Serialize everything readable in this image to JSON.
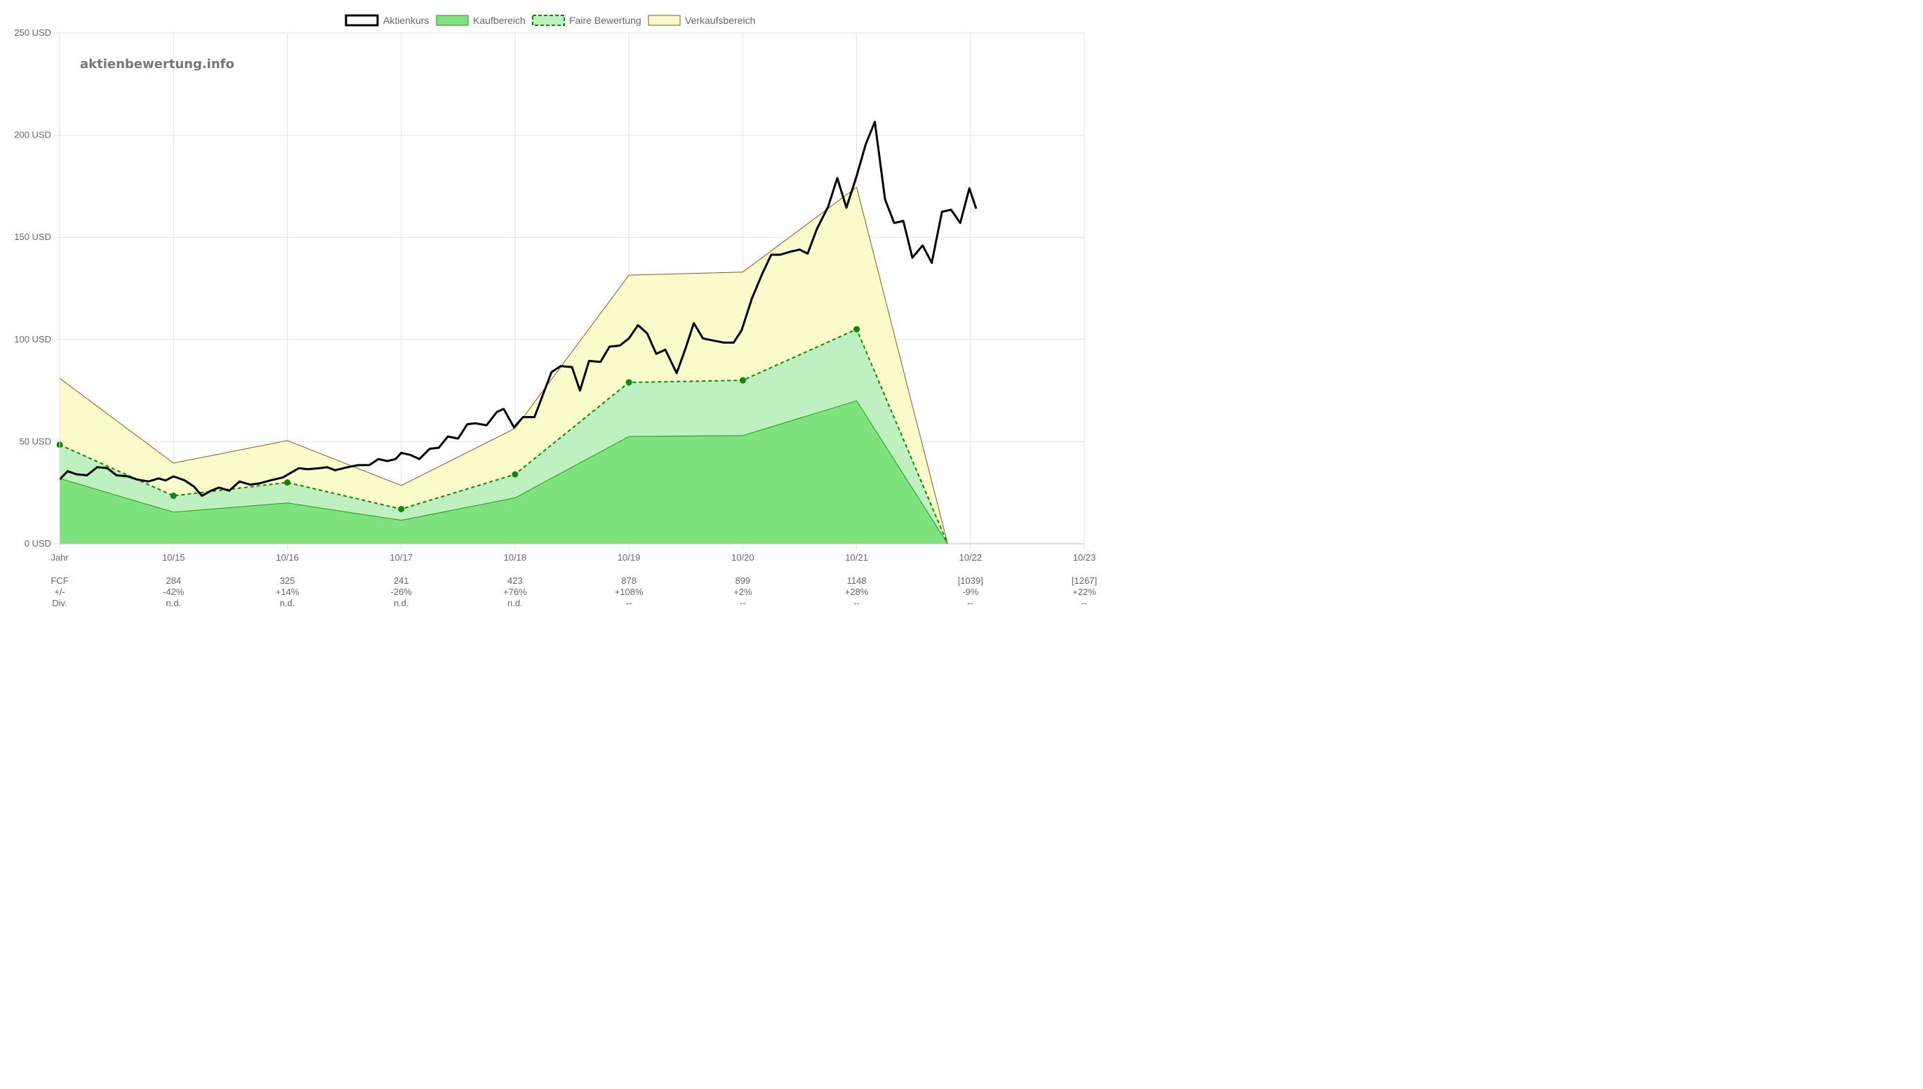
{
  "watermark": "aktienbewertung.info",
  "colors": {
    "price": "#000000",
    "buy_fill": "#7ee27e",
    "buy_line": "#1a9e1a",
    "fair_fill": "#bff0bf",
    "fair_line": "#0a8a0a",
    "sell_fill": "#fafacb",
    "sell_line": "#8b5a1a",
    "grid": "#e3e3e3",
    "text": "#666666"
  },
  "chart_data": {
    "type": "line",
    "legend": [
      "Aktienkurs",
      "Kaufbereich",
      "Faire Bewertung",
      "Verkaufsbereich"
    ],
    "legend_position": "top-center",
    "grid": true,
    "x_ticks": [
      "Jahr",
      "10/15",
      "10/16",
      "10/17",
      "10/18",
      "10/19",
      "10/20",
      "10/21",
      "10/22",
      "10/23"
    ],
    "y_ticks": [
      "0 USD",
      "50 USD",
      "100 USD",
      "150 USD",
      "200 USD",
      "250 USD"
    ],
    "ylim": [
      0,
      250
    ],
    "xlim": [
      2014,
      2023
    ],
    "table": {
      "row_labels": [
        "FCF",
        "+/-",
        "Div."
      ],
      "columns": [
        {
          "x": "10/15",
          "fcf": "284",
          "change": "-42%",
          "div": "n.d."
        },
        {
          "x": "10/16",
          "fcf": "325",
          "change": "+14%",
          "div": "n.d."
        },
        {
          "x": "10/17",
          "fcf": "241",
          "change": "-26%",
          "div": "n.d."
        },
        {
          "x": "10/18",
          "fcf": "423",
          "change": "+76%",
          "div": "n.d."
        },
        {
          "x": "10/19",
          "fcf": "878",
          "change": "+108%",
          "div": "--"
        },
        {
          "x": "10/20",
          "fcf": "899",
          "change": "+2%",
          "div": "--"
        },
        {
          "x": "10/21",
          "fcf": "1148",
          "change": "+28%",
          "div": "--"
        },
        {
          "x": "10/22",
          "fcf": "[1039]",
          "change": "-9%",
          "div": "--"
        },
        {
          "x": "10/23",
          "fcf": "[1267]",
          "change": "+22%",
          "div": "--"
        }
      ]
    },
    "series": [
      {
        "name": "Verkaufsbereich",
        "points": [
          [
            2014.0,
            81
          ],
          [
            2015.0,
            39.5
          ],
          [
            2016.0,
            50.5
          ],
          [
            2017.0,
            28.5
          ],
          [
            2018.0,
            56.5
          ],
          [
            2019.0,
            131.5
          ],
          [
            2020.0,
            133
          ],
          [
            2021.0,
            174.5
          ],
          [
            2021.8,
            0
          ],
          [
            2023.0,
            0
          ]
        ]
      },
      {
        "name": "Faire Bewertung",
        "points": [
          [
            2014.0,
            48.5
          ],
          [
            2015.0,
            23.5
          ],
          [
            2016.0,
            30
          ],
          [
            2017.0,
            17
          ],
          [
            2018.0,
            34
          ],
          [
            2019.0,
            79
          ],
          [
            2020.0,
            80
          ],
          [
            2021.0,
            105
          ],
          [
            2021.8,
            0
          ]
        ]
      },
      {
        "name": "Kaufbereich",
        "points": [
          [
            2014.0,
            32
          ],
          [
            2015.0,
            15.5
          ],
          [
            2016.0,
            20
          ],
          [
            2017.0,
            11.5
          ],
          [
            2018.0,
            22.5
          ],
          [
            2019.0,
            52.5
          ],
          [
            2020.0,
            53
          ],
          [
            2021.0,
            70
          ],
          [
            2021.8,
            0
          ],
          [
            2023.0,
            0
          ]
        ]
      },
      {
        "name": "Aktienkurs",
        "points": [
          [
            2014.0,
            31.5
          ],
          [
            2014.07,
            35.5
          ],
          [
            2014.15,
            34
          ],
          [
            2014.24,
            33.5
          ],
          [
            2014.33,
            37.5
          ],
          [
            2014.42,
            37
          ],
          [
            2014.5,
            33.5
          ],
          [
            2014.6,
            33
          ],
          [
            2014.68,
            31.5
          ],
          [
            2014.78,
            30.5
          ],
          [
            2014.87,
            32
          ],
          [
            2014.93,
            31
          ],
          [
            2015.0,
            33
          ],
          [
            2015.1,
            31
          ],
          [
            2015.18,
            28
          ],
          [
            2015.25,
            23.5
          ],
          [
            2015.33,
            26
          ],
          [
            2015.4,
            27.5
          ],
          [
            2015.49,
            26
          ],
          [
            2015.58,
            30.5
          ],
          [
            2015.67,
            29
          ],
          [
            2015.75,
            29.5
          ],
          [
            2015.85,
            31
          ],
          [
            2015.96,
            32.5
          ],
          [
            2016.1,
            37
          ],
          [
            2016.18,
            36.5
          ],
          [
            2016.28,
            37
          ],
          [
            2016.35,
            37.5
          ],
          [
            2016.42,
            36
          ],
          [
            2016.53,
            37.5
          ],
          [
            2016.62,
            38.5
          ],
          [
            2016.72,
            38.5
          ],
          [
            2016.8,
            41.5
          ],
          [
            2016.88,
            40.5
          ],
          [
            2016.95,
            41.5
          ],
          [
            2017.0,
            44.5
          ],
          [
            2017.08,
            43.5
          ],
          [
            2017.16,
            41.5
          ],
          [
            2017.25,
            46.5
          ],
          [
            2017.33,
            47
          ],
          [
            2017.41,
            52.5
          ],
          [
            2017.5,
            51.5
          ],
          [
            2017.58,
            58.5
          ],
          [
            2017.65,
            59
          ],
          [
            2017.75,
            58
          ],
          [
            2017.84,
            64.5
          ],
          [
            2017.9,
            66
          ],
          [
            2017.99,
            57
          ],
          [
            2018.07,
            62
          ],
          [
            2018.17,
            62
          ],
          [
            2018.32,
            84
          ],
          [
            2018.4,
            87
          ],
          [
            2018.5,
            86.5
          ],
          [
            2018.57,
            75
          ],
          [
            2018.65,
            89.5
          ],
          [
            2018.75,
            89
          ],
          [
            2018.83,
            96.5
          ],
          [
            2018.92,
            97
          ],
          [
            2019.0,
            100.5
          ],
          [
            2019.08,
            107
          ],
          [
            2019.16,
            103
          ],
          [
            2019.24,
            93
          ],
          [
            2019.32,
            95
          ],
          [
            2019.42,
            83.5
          ],
          [
            2019.5,
            96
          ],
          [
            2019.57,
            108
          ],
          [
            2019.65,
            100.5
          ],
          [
            2019.74,
            99.5
          ],
          [
            2019.83,
            98.5
          ],
          [
            2019.92,
            98.5
          ],
          [
            2019.99,
            104.5
          ],
          [
            2020.08,
            120
          ],
          [
            2020.17,
            132
          ],
          [
            2020.25,
            141.5
          ],
          [
            2020.33,
            141.5
          ],
          [
            2020.42,
            143
          ],
          [
            2020.5,
            144
          ],
          [
            2020.57,
            142
          ],
          [
            2020.65,
            154
          ],
          [
            2020.75,
            165
          ],
          [
            2020.83,
            179
          ],
          [
            2020.91,
            164.5
          ],
          [
            2021.0,
            180
          ],
          [
            2021.08,
            195.5
          ],
          [
            2021.16,
            206.5
          ],
          [
            2021.25,
            168.5
          ],
          [
            2021.33,
            157
          ],
          [
            2021.41,
            158
          ],
          [
            2021.49,
            140
          ],
          [
            2021.58,
            146
          ],
          [
            2021.66,
            137.5
          ],
          [
            2021.75,
            162.5
          ],
          [
            2021.83,
            163.5
          ],
          [
            2021.91,
            157
          ],
          [
            2021.99,
            174
          ],
          [
            2022.05,
            164
          ]
        ]
      }
    ]
  }
}
